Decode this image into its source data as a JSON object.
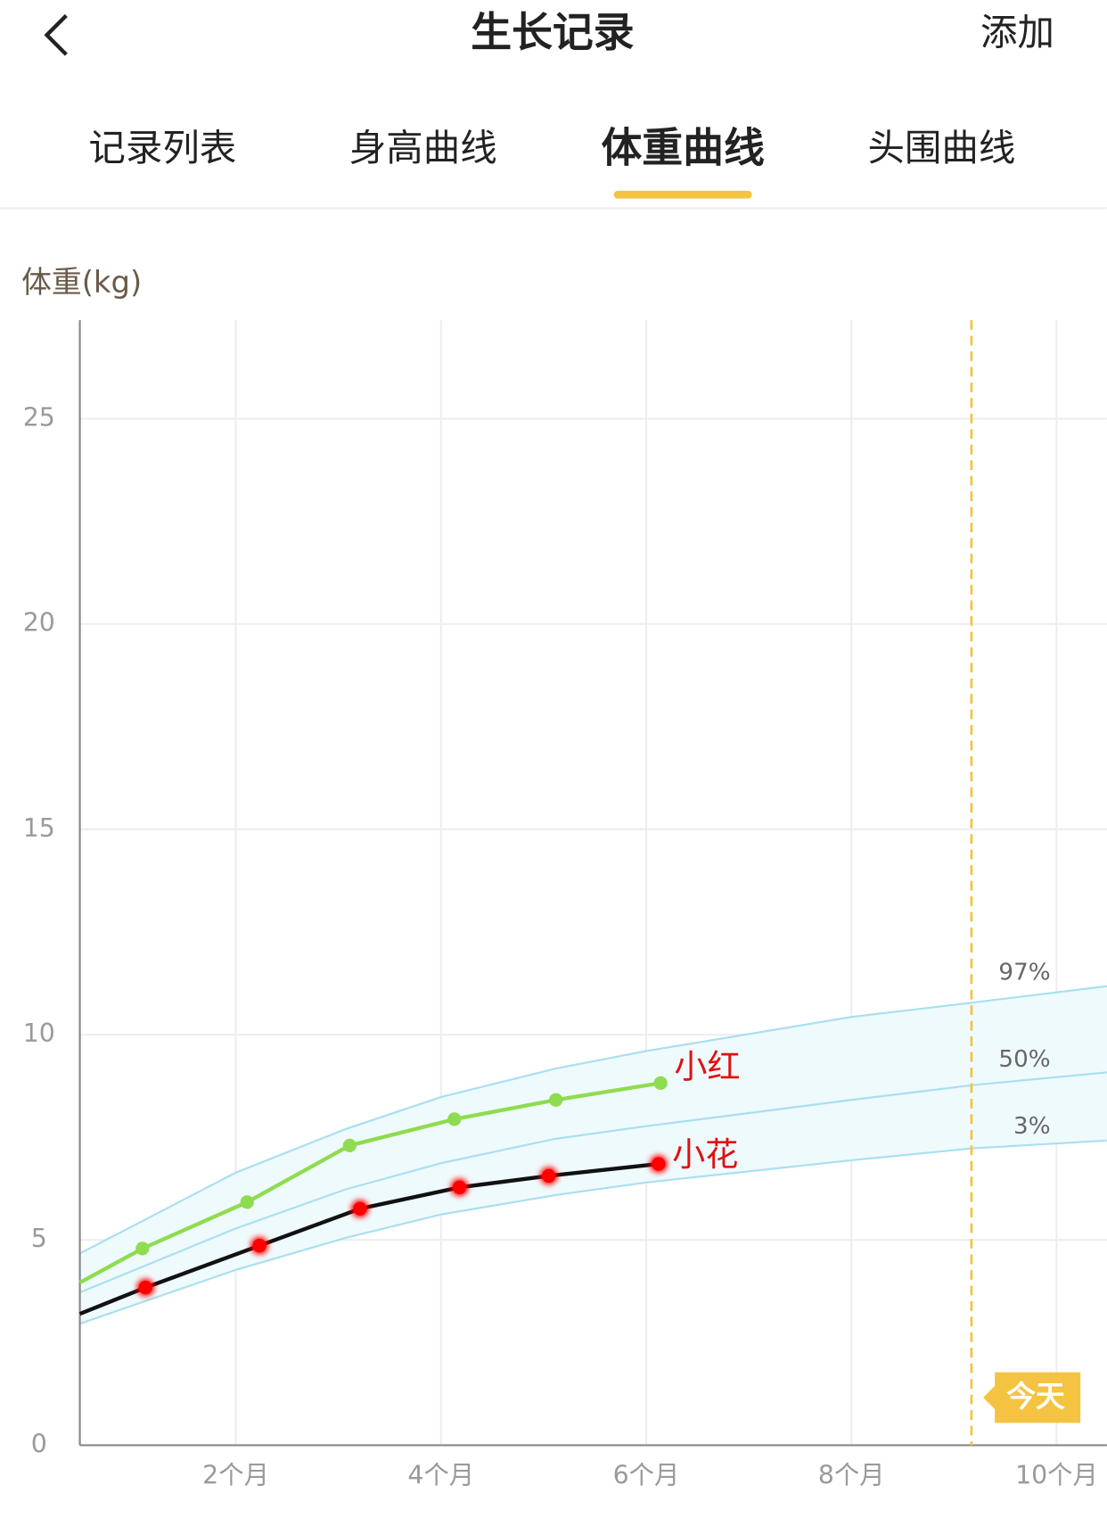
{
  "header": {
    "title": "生长记录",
    "action": "添加"
  },
  "tabs": [
    "记录列表",
    "身高曲线",
    "体重曲线",
    "头围曲线"
  ],
  "active_tab": 2,
  "chart_data": {
    "type": "line",
    "y_label": "体重(kg)",
    "xlim": [
      0.48,
      10.49
    ],
    "ylim": [
      0,
      27.4
    ],
    "xticks": [
      {
        "value": 2,
        "label": "2个月"
      },
      {
        "value": 4,
        "label": "4个月"
      },
      {
        "value": 6,
        "label": "6个月"
      },
      {
        "value": 8,
        "label": "8个月"
      },
      {
        "value": 10,
        "label": "10个月"
      }
    ],
    "yticks": [
      0,
      5,
      10,
      15,
      20,
      25
    ],
    "grid": true,
    "series": [
      {
        "name": "小红",
        "color": "#8fdc4f",
        "marker_color": "#8fdc4f",
        "x": [
          0.48,
          1.09,
          2.11,
          3.11,
          4.13,
          5.12,
          6.14
        ],
        "values": [
          3.96,
          4.79,
          5.92,
          7.3,
          7.94,
          8.41,
          8.82
        ]
      },
      {
        "name": "小花",
        "color": "#111111",
        "marker_color": "#ff0000",
        "x": [
          0.48,
          1.12,
          2.23,
          3.21,
          4.18,
          5.05,
          6.12
        ],
        "values": [
          3.2,
          3.84,
          4.86,
          5.76,
          6.28,
          6.56,
          6.85
        ]
      }
    ],
    "reference_lines": {
      "color": "#a9dff0",
      "fill": "#effafd",
      "x": [
        0.48,
        2,
        3.07,
        4,
        5.11,
        6,
        8,
        9.18,
        10.49
      ],
      "series": [
        {
          "name": "97%",
          "values": [
            4.67,
            6.64,
            7.7,
            8.48,
            9.17,
            9.6,
            10.43,
            10.78,
            11.18
          ]
        },
        {
          "name": "50%",
          "values": [
            3.72,
            5.28,
            6.23,
            6.87,
            7.46,
            7.77,
            8.41,
            8.77,
            9.08
          ]
        },
        {
          "name": "3%",
          "values": [
            2.96,
            4.27,
            5.05,
            5.62,
            6.09,
            6.4,
            6.94,
            7.23,
            7.42
          ]
        }
      ]
    },
    "today": {
      "label": "今天",
      "x": 9.17,
      "color": "#f5c342"
    }
  }
}
